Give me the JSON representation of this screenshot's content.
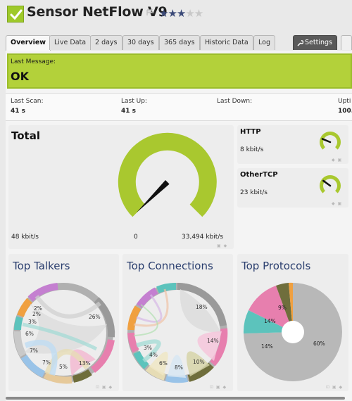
{
  "header": {
    "title": "Sensor NetFlow V9",
    "priority_stars": 3,
    "priority_max": 5
  },
  "tabs": [
    {
      "label": "Overview",
      "active": true
    },
    {
      "label": "Live Data"
    },
    {
      "label": "2 days"
    },
    {
      "label": "30 days"
    },
    {
      "label": "365 days"
    },
    {
      "label": "Historic Data"
    },
    {
      "label": "Log"
    },
    {
      "label": "Settings"
    }
  ],
  "message": {
    "label": "Last Message:",
    "text": "OK"
  },
  "stats": [
    {
      "label": "Last Scan:",
      "value": "41 s"
    },
    {
      "label": "Last Up:",
      "value": "41 s"
    },
    {
      "label": "Last Down:",
      "value": ""
    },
    {
      "label": "Upti",
      "value": "100."
    }
  ],
  "gauges": {
    "total": {
      "title": "Total",
      "value": "48 kbit/s",
      "min": "0",
      "max": "33,494 kbit/s",
      "fraction": 0.0015
    },
    "http": {
      "title": "HTTP",
      "value": "8 kbit/s",
      "fraction": 0.25
    },
    "othertcp": {
      "title": "OtherTCP",
      "value": "23 kbit/s",
      "fraction": 0.3
    }
  },
  "top_charts": [
    {
      "title": "Top Talkers",
      "labels": [
        "26%",
        "13%",
        "5%",
        "7%",
        "7%",
        "6%",
        "3%",
        "2%",
        "2%"
      ]
    },
    {
      "title": "Top Connections",
      "labels": [
        "18%",
        "14%",
        "10%",
        "8%",
        "6%",
        "4%",
        "3%"
      ]
    },
    {
      "title": "Top Protocols",
      "labels": [
        "60%",
        "14%",
        "14%",
        "9%"
      ]
    }
  ],
  "colors": {
    "accent_green": "#b3d13a",
    "gauge_green": "#a9c82f",
    "title_blue": "#2a3e6e",
    "pink": "#e77fae",
    "teal": "#5cc3bc",
    "olive": "#6f6e3c",
    "grey": "#b8b8b8"
  }
}
